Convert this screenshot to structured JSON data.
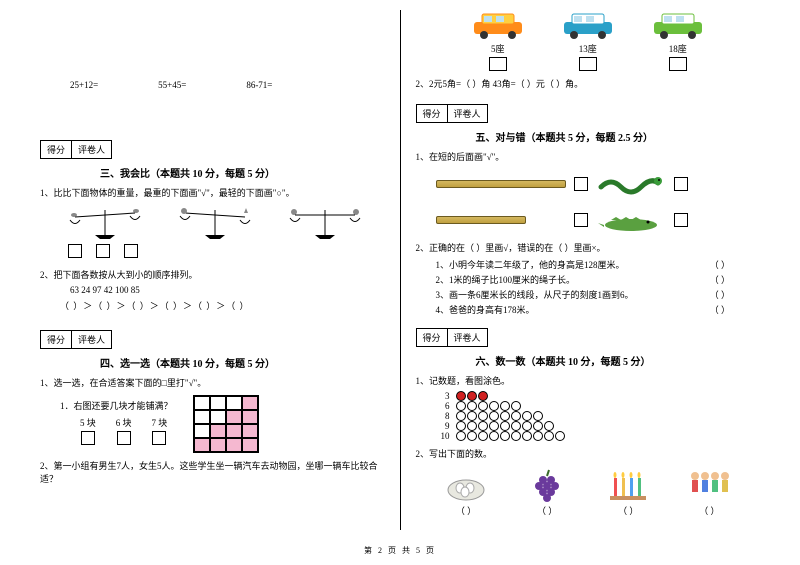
{
  "footer": "第 2 页 共 5 页",
  "left": {
    "equations": [
      "25+12=",
      "55+45=",
      "86-71="
    ],
    "scorebox": {
      "a": "得分",
      "b": "评卷人"
    },
    "sec3": {
      "title": "三、我会比（本题共 10 分，每题 5 分）",
      "q1": "1、比比下面物体的重量，最重的下面画\"√\"，最轻的下面画\"○\"。",
      "q2": "2、把下面各数按从大到小的顺序排列。",
      "nums": "63       24       97       42       100       85",
      "order": "（   ）＞（   ）＞（   ）＞（   ）＞（   ）＞（   ）"
    },
    "sec4": {
      "title": "四、选一选（本题共 10 分，每题 5 分）",
      "q1": "1、选一选，在合适答案下面的□里打\"√\"。",
      "tile": "1．右图还要几块才能铺满？",
      "opts": [
        "5 块",
        "6 块",
        "7 块"
      ],
      "q2": "2、第一小组有男生7人，女生5人。这些学生坐一辆汽车去动物园，坐哪一辆车比较合适？",
      "tile_colors": [
        [
          0,
          0,
          0,
          1
        ],
        [
          0,
          0,
          1,
          1
        ],
        [
          0,
          1,
          1,
          1
        ],
        [
          1,
          1,
          1,
          1
        ]
      ]
    }
  },
  "right": {
    "vehicles": [
      {
        "label": "5座",
        "body": "#ff8c1a",
        "roof": "#ffd040"
      },
      {
        "label": "13座",
        "body": "#2aa0c8",
        "roof": "#ffffff"
      },
      {
        "label": "18座",
        "body": "#6bbf3c",
        "roof": "#ffffff"
      }
    ],
    "q2line": "2、2元5角=（     ）角      43角=（     ）元（     ）角。",
    "scorebox": {
      "a": "得分",
      "b": "评卷人"
    },
    "sec5": {
      "title": "五、对与错（本题共 5 分，每题 2.5 分）",
      "q1": "1、在短的后面画\"√\"。",
      "rulers": {
        "snake_color": "#3a9c3a",
        "croc_color": "#5aa040"
      },
      "q2": "2、正确的在（   ）里画√，错误的在（   ）里画×。",
      "items": [
        "1、小明今年读二年级了，他的身高是128厘米。",
        "2、1米的绳子比100厘米的绳子长。",
        "3、画一条6厘米长的线段，从尺子的刻度1画到6。",
        "4、爸爸的身高有178米。"
      ],
      "paren": "（     ）"
    },
    "sec6": {
      "title": "六、数一数（本题共 10 分，每题 5 分）",
      "q1": "1、记数题，看图涂色。",
      "counts": [
        {
          "n": "3",
          "total": 3,
          "red": 3
        },
        {
          "n": "6",
          "total": 6,
          "red": 0
        },
        {
          "n": "8",
          "total": 8,
          "red": 0
        },
        {
          "n": "9",
          "total": 9,
          "red": 0
        },
        {
          "n": "10",
          "total": 10,
          "red": 0
        }
      ],
      "q2": "2、写出下面的数。",
      "imgs": [
        {
          "name": "eggs",
          "paren": "（       ）"
        },
        {
          "name": "grapes",
          "paren": "（       ）"
        },
        {
          "name": "candles",
          "paren": "（       ）"
        },
        {
          "name": "people",
          "paren": "（       ）"
        }
      ]
    }
  }
}
